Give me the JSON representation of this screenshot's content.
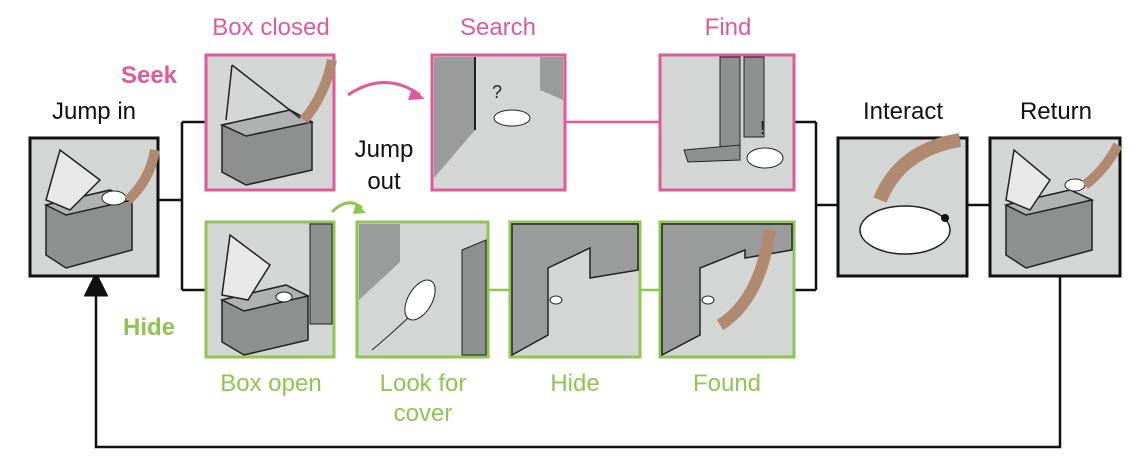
{
  "labels": {
    "jump_in": "Jump in",
    "box_closed": "Box closed",
    "search": "Search",
    "find": "Find",
    "interact": "Interact",
    "return": "Return",
    "seek": "Seek",
    "hide_row": "Hide",
    "jump_out_1": "Jump",
    "jump_out_2": "out",
    "box_open": "Box open",
    "look_for_cover_1": "Look for",
    "look_for_cover_2": "cover",
    "hide_panel": "Hide",
    "found": "Found"
  },
  "colors": {
    "seek": "#e05a9a",
    "hide": "#8fc651",
    "neutral": "#111111",
    "panel_fill": "#d4d5d5",
    "wall": "#9a9b9b",
    "hand": "#b08a70"
  }
}
